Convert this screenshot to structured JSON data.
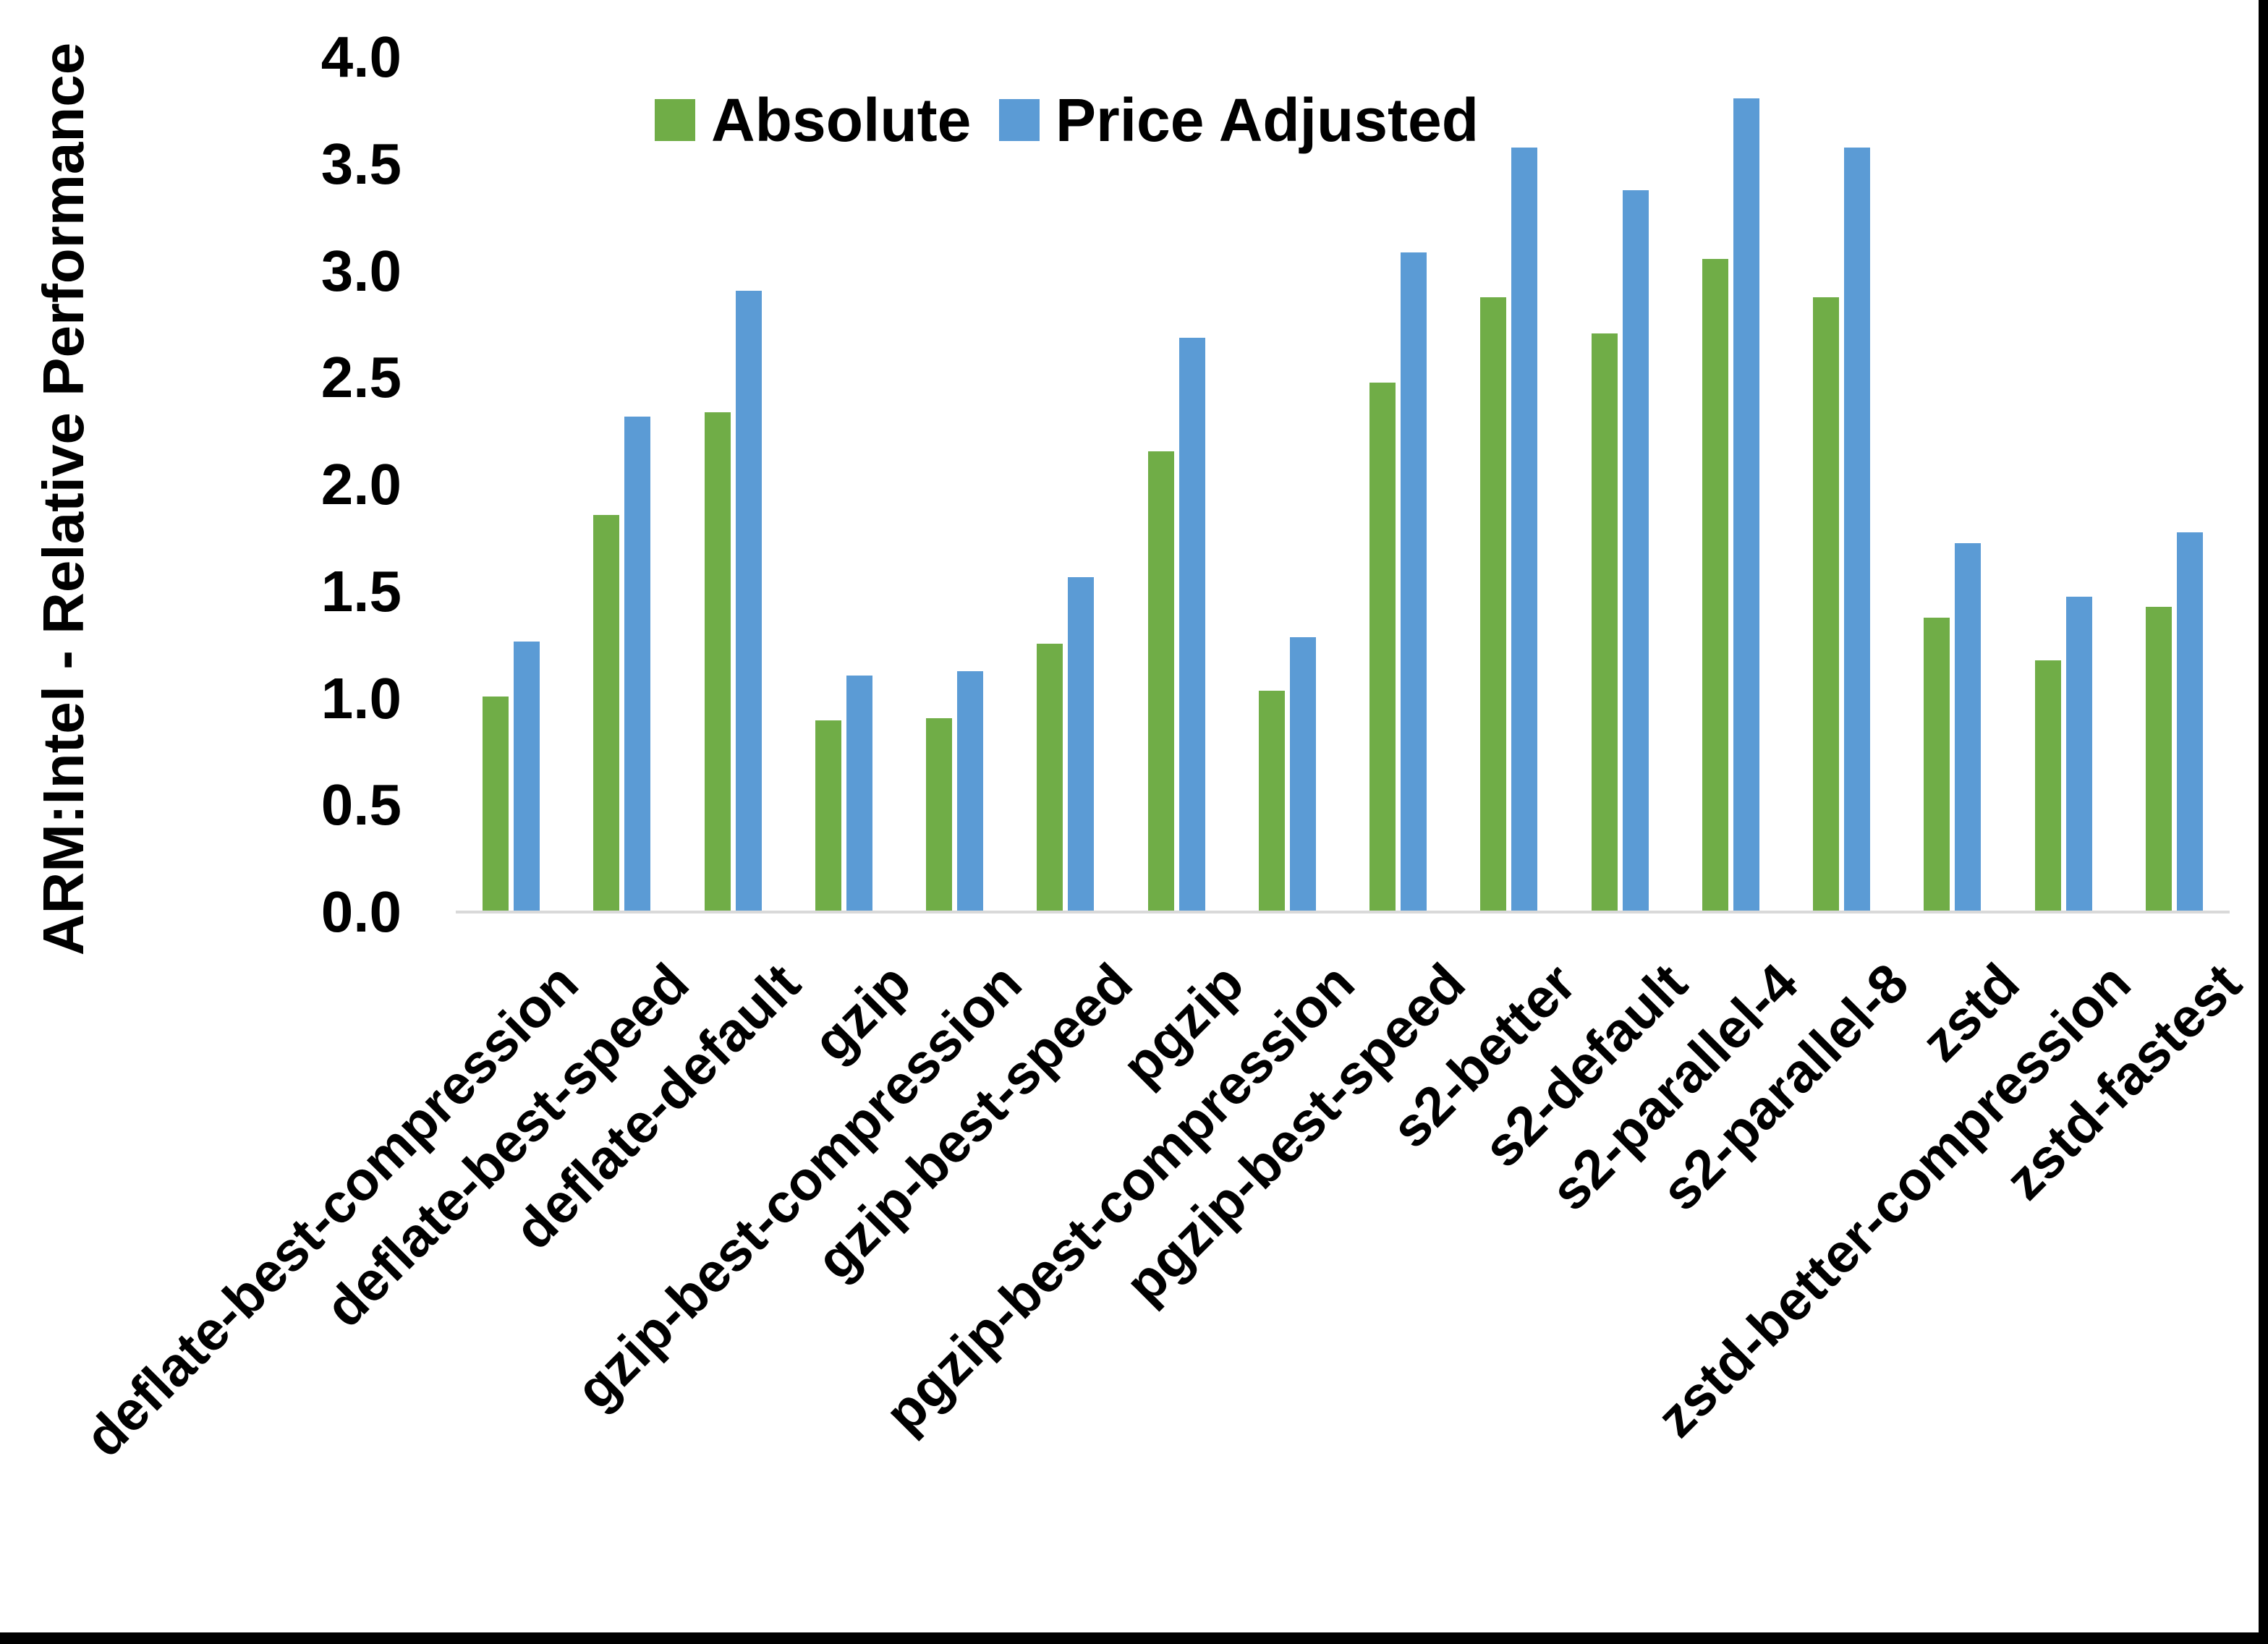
{
  "chart_data": {
    "type": "bar",
    "title": "",
    "xlabel": "",
    "ylabel": "ARM:Intel - Relative Performance",
    "ylim": [
      0.0,
      4.0
    ],
    "ytick_step": 0.5,
    "ytick_labels": [
      "0.0",
      "0.5",
      "1.0",
      "1.5",
      "2.0",
      "2.5",
      "3.0",
      "3.5",
      "4.0"
    ],
    "grid": false,
    "legend_position": "top-center",
    "categories": [
      "deflate-best-compression",
      "deflate-best-speed",
      "deflate-default",
      "gzip",
      "gzip-best-compression",
      "gzip-best-speed",
      "pgzip",
      "pgzip-best-compression",
      "pgzip-best-speed",
      "s2-better",
      "s2-default",
      "s2-parallel-4",
      "s2-parallel-8",
      "zstd",
      "zstd-better-compression",
      "zstd-fastest"
    ],
    "series": [
      {
        "name": "Absolute",
        "color": "#70AD47",
        "values": [
          1.0,
          1.85,
          2.33,
          0.89,
          0.9,
          1.25,
          2.15,
          1.03,
          2.47,
          2.87,
          2.7,
          3.05,
          2.87,
          1.37,
          1.17,
          1.42
        ]
      },
      {
        "name": "Price Adjusted",
        "color": "#5B9BD5",
        "values": [
          1.26,
          2.31,
          2.9,
          1.1,
          1.12,
          1.56,
          2.68,
          1.28,
          3.08,
          3.57,
          3.37,
          3.8,
          3.57,
          1.72,
          1.47,
          1.77
        ]
      }
    ]
  },
  "colors": {
    "axis_line": "#D9D9D9",
    "text": "#000000",
    "frame_border": "#000000",
    "background": "#FFFFFF"
  }
}
